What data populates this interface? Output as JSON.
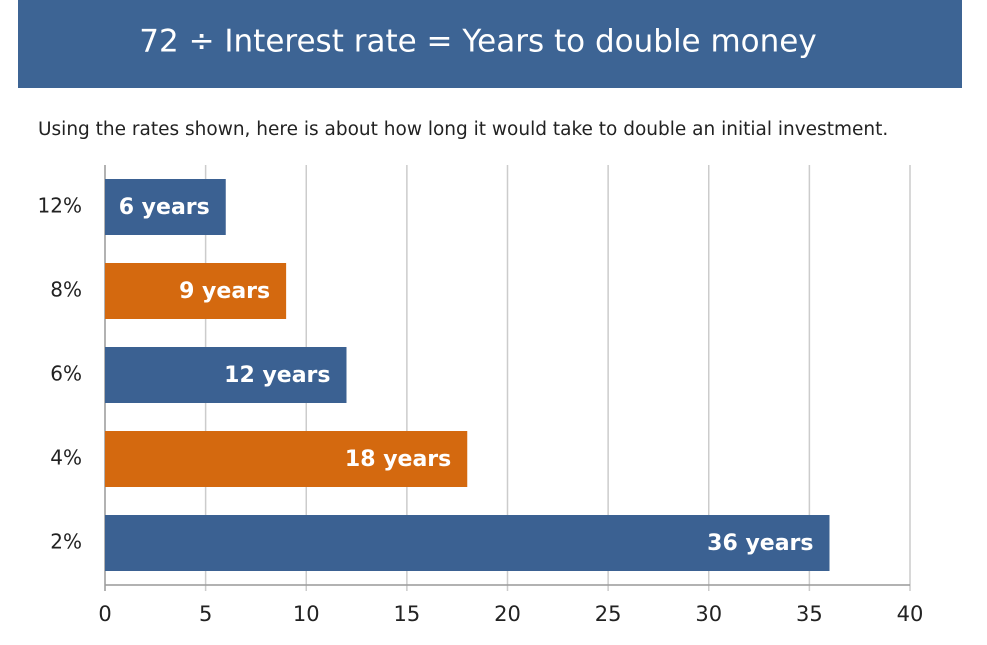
{
  "chart_data": {
    "type": "bar",
    "title": "72 ÷ Interest rate = Years to double money",
    "subtitle": "Using the rates shown, here is about how long it would take to double an initial investment.",
    "categories": [
      "12%",
      "8%",
      "6%",
      "4%",
      "2%"
    ],
    "values": [
      6,
      9,
      12,
      18,
      36
    ],
    "value_labels": [
      "6 years",
      "9 years",
      "12 years",
      "18 years",
      "36 years"
    ],
    "colors": [
      "#3b6192",
      "#d4690f",
      "#3b6192",
      "#d4690f",
      "#3b6192"
    ],
    "xlim": [
      0,
      40
    ],
    "xticks": [
      0,
      5,
      10,
      15,
      20,
      25,
      30,
      35,
      40
    ],
    "grid": true,
    "header_color": "#3d6494"
  }
}
